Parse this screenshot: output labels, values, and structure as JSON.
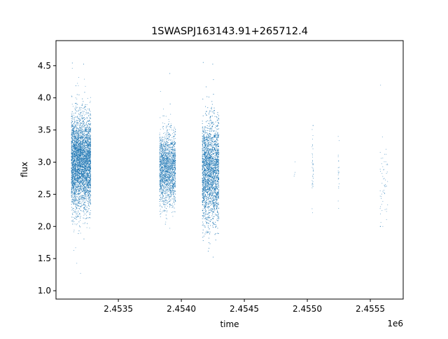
{
  "chart_data": {
    "type": "scatter",
    "title": "1SWASPJ163143.91+265712.4",
    "xlabel": "time",
    "ylabel": "flux",
    "x_offset_label": "1e6",
    "xlim": [
      2453005,
      2455761
    ],
    "ylim": [
      0.87,
      4.89
    ],
    "x_ticks": [
      2453500,
      2454000,
      2454500,
      2455000,
      2455500
    ],
    "x_tick_labels": [
      "2.4535",
      "2.4540",
      "2.4545",
      "2.4550",
      "2.4555"
    ],
    "y_ticks": [
      1.0,
      1.5,
      2.0,
      2.5,
      3.0,
      3.5,
      4.0,
      4.5
    ],
    "y_tick_labels": [
      "1.0",
      "1.5",
      "2.0",
      "2.5",
      "3.0",
      "3.5",
      "4.0",
      "4.5"
    ],
    "grid": false,
    "marker_color": "#1f77b4",
    "clusters": [
      {
        "time_range": [
          2453128,
          2453283
        ],
        "flux_mean": 3.0,
        "flux_sd": 0.36,
        "flux_min": 1.18,
        "flux_max": 4.55,
        "n": 6000
      },
      {
        "time_range": [
          2453828,
          2453956
        ],
        "flux_mean": 2.9,
        "flux_sd": 0.28,
        "flux_min": 1.47,
        "flux_max": 4.4,
        "n": 2500
      },
      {
        "time_range": [
          2454167,
          2454300
        ],
        "flux_mean": 2.85,
        "flux_sd": 0.4,
        "flux_min": 1.05,
        "flux_max": 4.55,
        "n": 4500
      },
      {
        "time_range": [
          2454895,
          2454905
        ],
        "flux_mean": 2.9,
        "flux_sd": 0.1,
        "flux_min": 2.75,
        "flux_max": 3.1,
        "n": 4
      },
      {
        "time_range": [
          2455038,
          2455050
        ],
        "flux_mean": 2.95,
        "flux_sd": 0.35,
        "flux_min": 1.87,
        "flux_max": 3.57,
        "n": 40
      },
      {
        "time_range": [
          2455245,
          2455255
        ],
        "flux_mean": 2.8,
        "flux_sd": 0.25,
        "flux_min": 2.28,
        "flux_max": 3.4,
        "n": 20
      },
      {
        "time_range": [
          2455578,
          2455640
        ],
        "flux_mean": 2.7,
        "flux_sd": 0.35,
        "flux_min": 2.0,
        "flux_max": 4.72,
        "n": 60
      }
    ]
  }
}
